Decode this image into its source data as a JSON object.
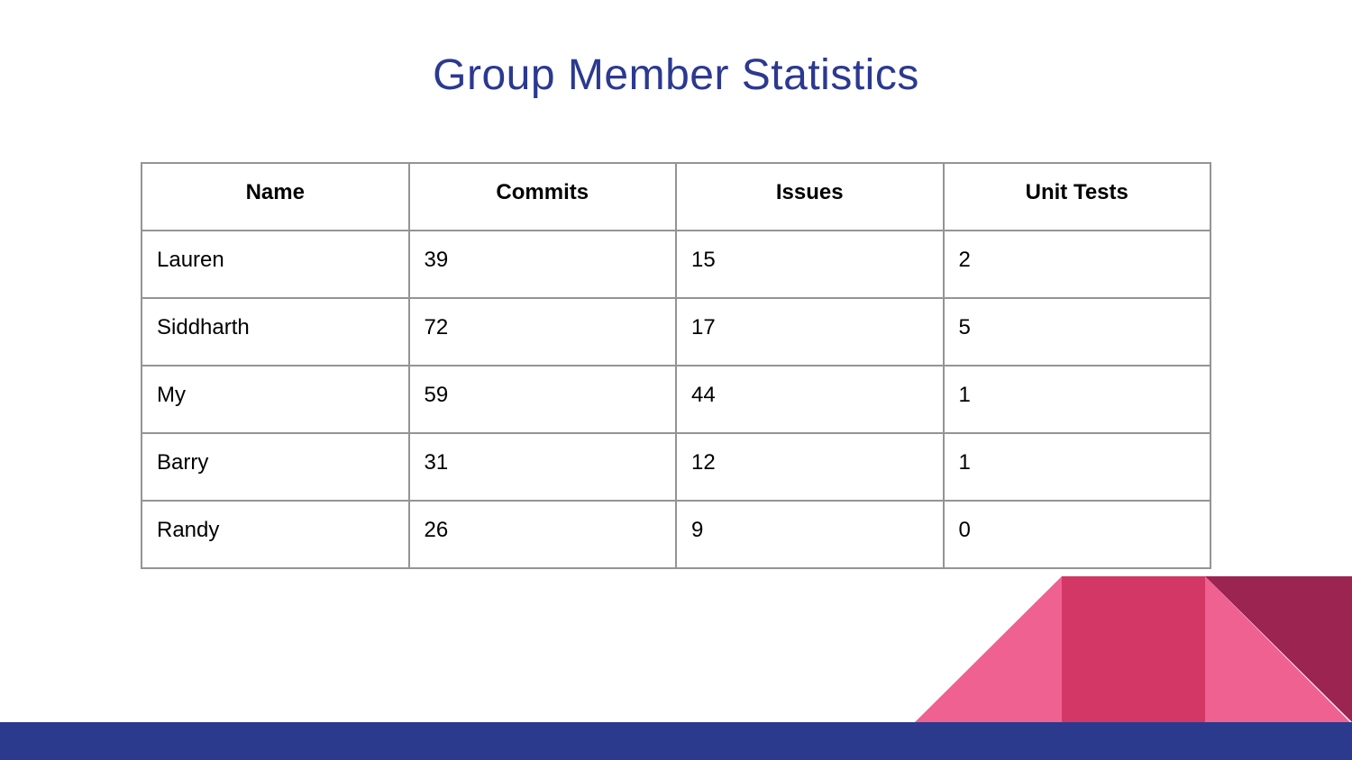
{
  "slide": {
    "title": "Group Member Statistics"
  },
  "table": {
    "columns": [
      "Name",
      "Commits",
      "Issues",
      "Unit Tests"
    ],
    "rows": [
      [
        "Lauren",
        "39",
        "15",
        "2"
      ],
      [
        "Siddharth",
        "72",
        "17",
        "5"
      ],
      [
        "My",
        "59",
        "44",
        "1"
      ],
      [
        "Barry",
        "31",
        "12",
        "1"
      ],
      [
        "Randy",
        "26",
        "9",
        "0"
      ]
    ]
  },
  "colors": {
    "title": "#2b3990",
    "table_border": "#949494",
    "table_text": "#000000",
    "footer_bar": "#2b3a8c",
    "pink_light": "#ef6190",
    "pink_medium": "#d23766",
    "pink_dark": "#9c2450",
    "background": "#ffffff"
  }
}
